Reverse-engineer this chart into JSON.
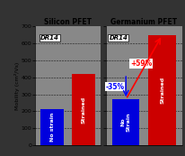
{
  "title_si": "Silicon PFET",
  "title_ge": "Germanium PFET",
  "ylabel": "Mobility (cm²/Vs)",
  "ylim": [
    0,
    700
  ],
  "yticks": [
    0,
    100,
    200,
    300,
    400,
    500,
    600,
    700
  ],
  "si_bars": {
    "labels": [
      "No strain",
      "Strained"
    ],
    "values": [
      210,
      420
    ],
    "colors": [
      "#0000dd",
      "#cc0000"
    ]
  },
  "ge_bars": {
    "labels": [
      "No\nStrain",
      "Strained"
    ],
    "values": [
      270,
      650
    ],
    "colors": [
      "#0000dd",
      "#cc0000"
    ]
  },
  "dr14_label": "DR14",
  "annotation_neg": "-35%",
  "annotation_pos": "+59%",
  "bg_color": "#888888",
  "outer_bg": "#333333",
  "text_color_red": "#ff2200",
  "text_color_blue": "#0000ff"
}
